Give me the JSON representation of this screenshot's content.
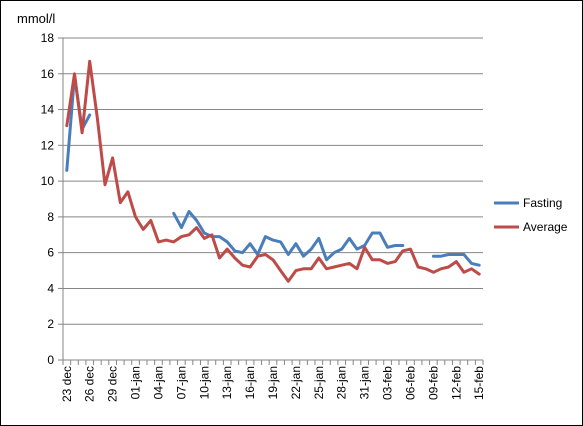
{
  "chart_data": {
    "type": "line",
    "ylabel": "mmol/l",
    "xlabel": "",
    "title": "",
    "ylim": [
      0,
      18
    ],
    "yticks": [
      0,
      2,
      4,
      6,
      8,
      10,
      12,
      14,
      16,
      18
    ],
    "grid": "horizontal",
    "legend_position": "right",
    "categories": [
      "23 dec",
      "24 dec",
      "25 dec",
      "26 dec",
      "27 dec",
      "28 dec",
      "29 dec",
      "30 dec",
      "31 dec",
      "01-jan",
      "02-jan",
      "03-jan",
      "04-jan",
      "05-jan",
      "06-jan",
      "07-jan",
      "08-jan",
      "09-jan",
      "10-jan",
      "11-jan",
      "12-jan",
      "13-jan",
      "14-jan",
      "15-jan",
      "16-jan",
      "17-jan",
      "18-jan",
      "19-jan",
      "20-jan",
      "21-jan",
      "22-jan",
      "23-jan",
      "24-jan",
      "25-jan",
      "26-jan",
      "27-jan",
      "28-jan",
      "29-jan",
      "30-jan",
      "31-jan",
      "01-feb",
      "02-feb",
      "03-feb",
      "04-feb",
      "05-feb",
      "06-feb",
      "07-feb",
      "08-feb",
      "09-feb",
      "10-feb",
      "11-feb",
      "12-feb",
      "13-feb",
      "14-feb",
      "15-feb"
    ],
    "xtick_labels": [
      "23 dec",
      "26 dec",
      "29 dec",
      "01-jan",
      "04-jan",
      "07-jan",
      "10-jan",
      "13-jan",
      "16-jan",
      "19-jan",
      "22-jan",
      "25-jan",
      "28-jan",
      "31-jan",
      "03-feb",
      "06-feb",
      "09-feb",
      "12-feb",
      "15-feb"
    ],
    "series": [
      {
        "name": "Fasting",
        "color": "#4A7EBB",
        "values": [
          10.6,
          15.9,
          12.9,
          13.7,
          null,
          null,
          null,
          null,
          null,
          null,
          null,
          null,
          null,
          null,
          8.2,
          7.4,
          8.3,
          7.8,
          7.1,
          6.9,
          6.9,
          6.6,
          6.1,
          6.0,
          6.5,
          5.9,
          6.9,
          6.7,
          6.6,
          5.9,
          6.5,
          5.8,
          6.2,
          6.8,
          5.6,
          6.0,
          6.2,
          6.8,
          6.2,
          6.4,
          7.1,
          7.1,
          6.3,
          6.4,
          6.4,
          null,
          null,
          null,
          5.8,
          5.8,
          5.9,
          5.9,
          5.9,
          5.4,
          5.3
        ]
      },
      {
        "name": "Average",
        "color": "#BE4B48",
        "values": [
          13.1,
          16.0,
          12.7,
          16.7,
          13.5,
          9.8,
          11.3,
          8.8,
          9.4,
          8.0,
          7.3,
          7.8,
          6.6,
          6.7,
          6.6,
          6.9,
          7.0,
          7.4,
          6.8,
          7.0,
          5.7,
          6.2,
          5.7,
          5.3,
          5.2,
          5.8,
          5.9,
          5.6,
          5.0,
          4.4,
          5.0,
          5.1,
          5.1,
          5.7,
          5.1,
          5.2,
          5.3,
          5.4,
          5.1,
          6.3,
          5.6,
          5.6,
          5.4,
          5.5,
          6.1,
          6.2,
          5.2,
          5.1,
          4.9,
          5.1,
          5.2,
          5.5,
          4.9,
          5.1,
          4.8
        ]
      }
    ]
  }
}
